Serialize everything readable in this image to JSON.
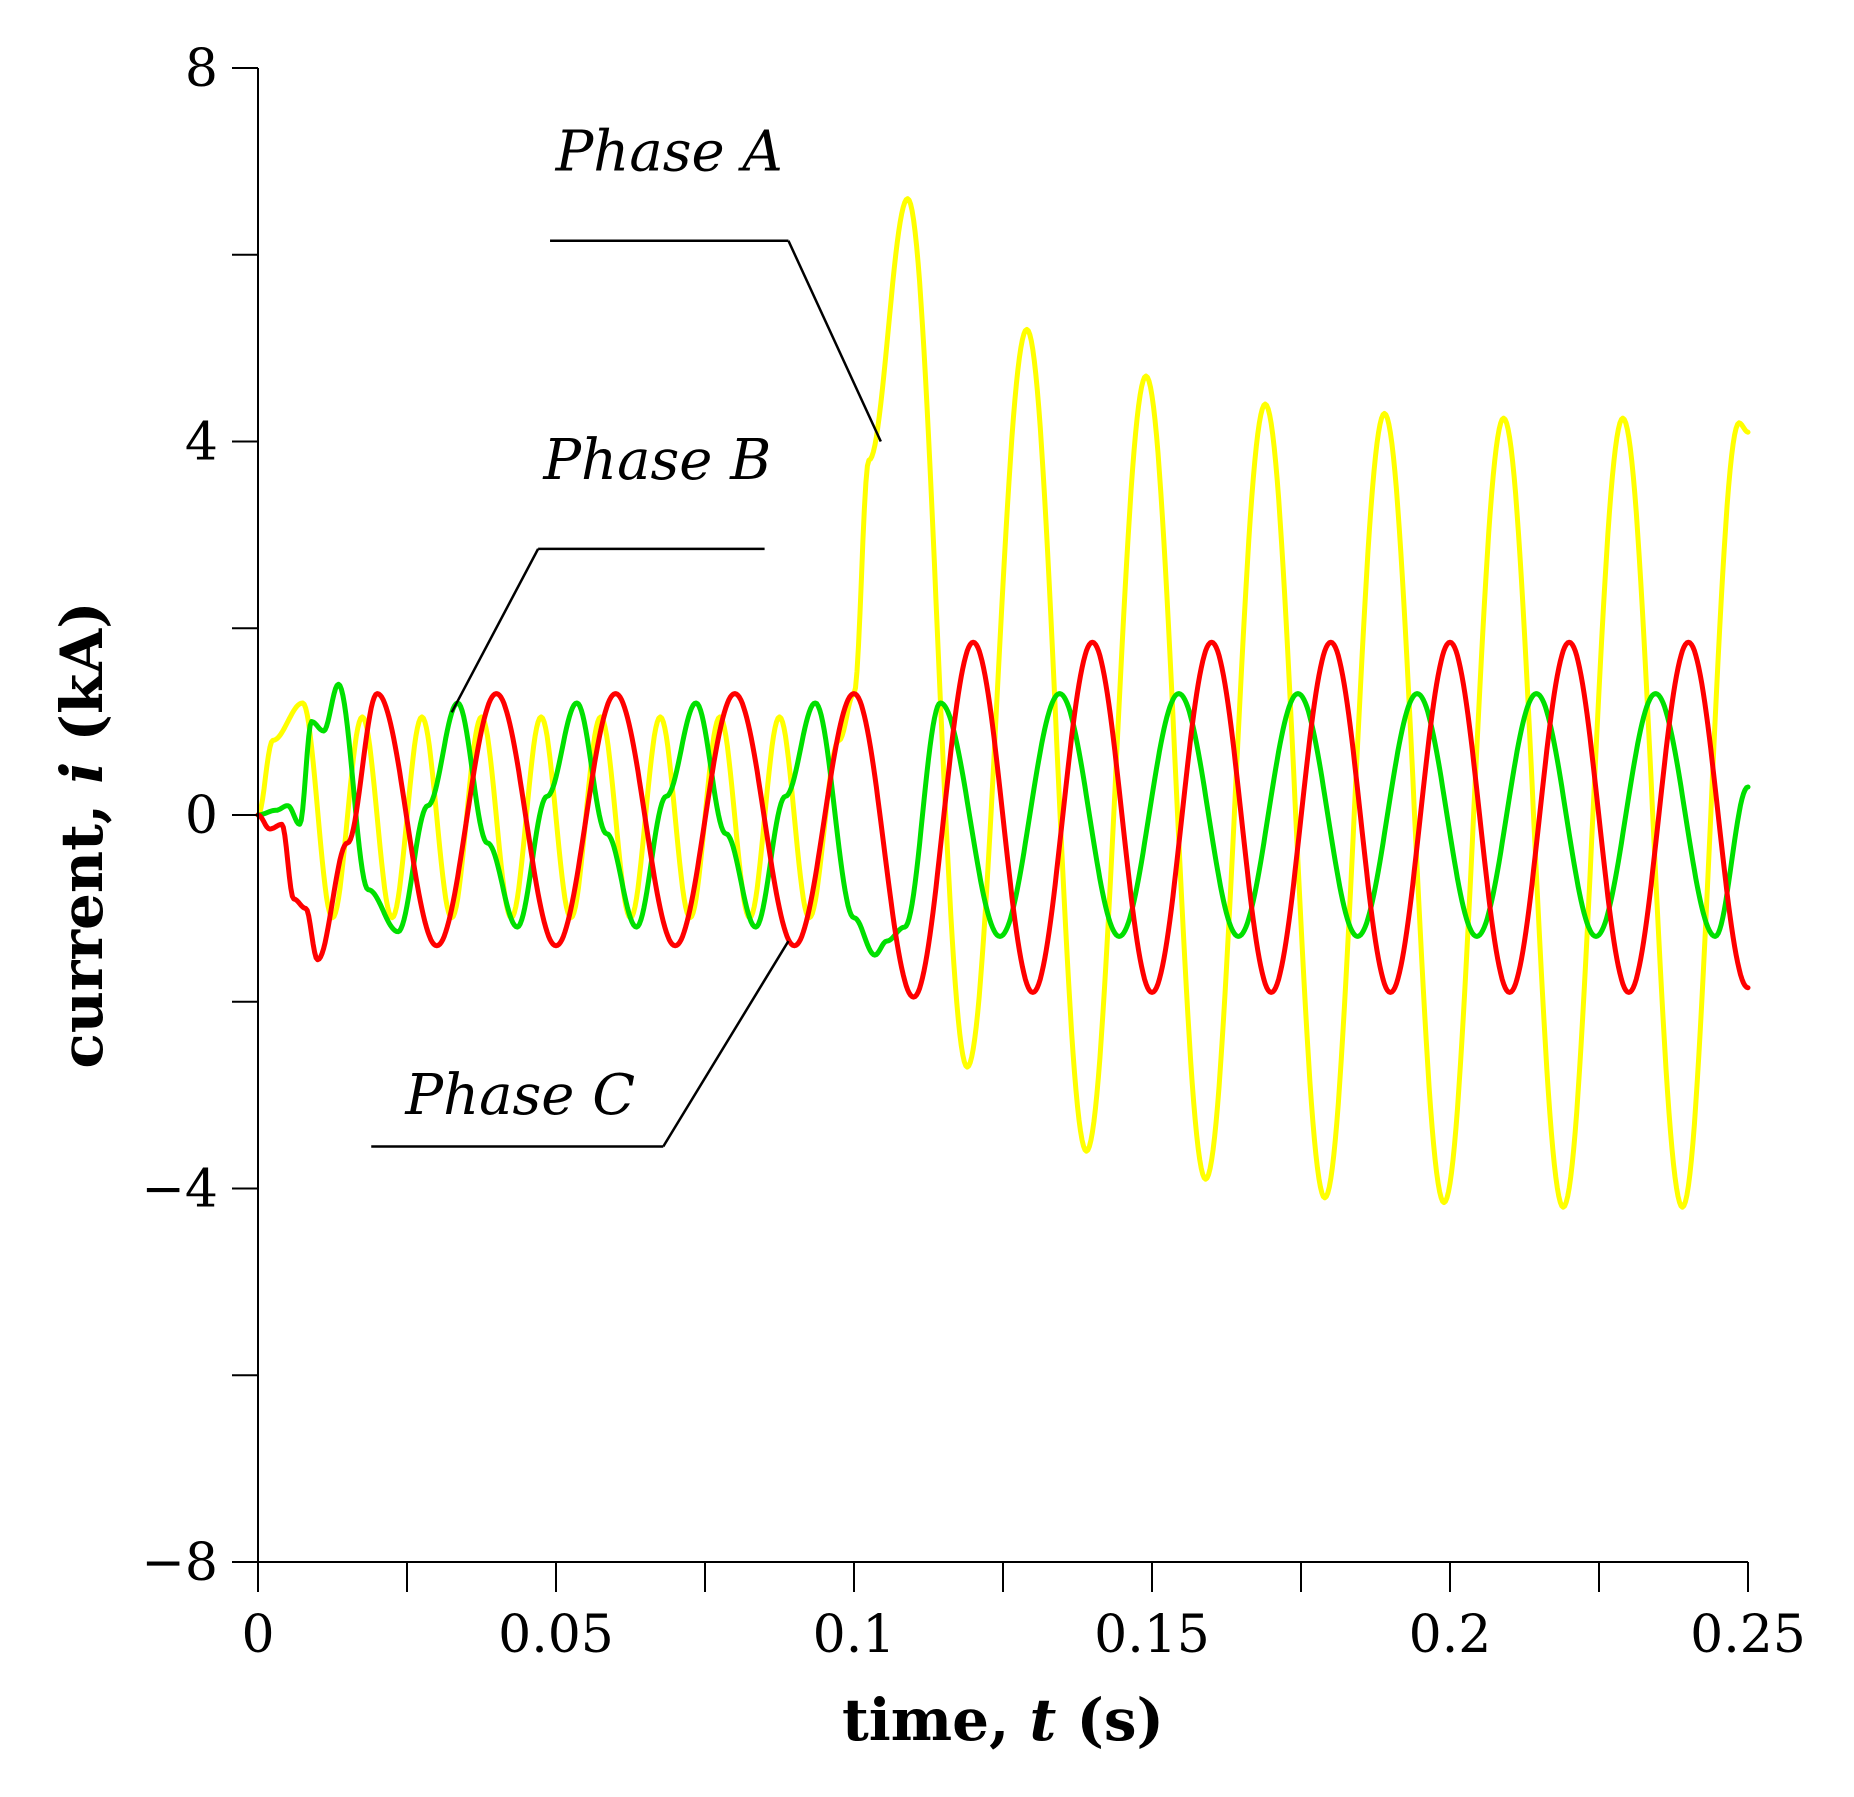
{
  "chart_data": {
    "type": "line",
    "title": "",
    "xlabel_parts": [
      "time, ",
      "t",
      " (s)"
    ],
    "ylabel_parts": [
      "current, ",
      "i",
      " (kA)"
    ],
    "xlim": [
      0,
      0.25
    ],
    "ylim": [
      -8,
      8
    ],
    "x_ticks": [
      0,
      0.05,
      0.1,
      0.15,
      0.2,
      0.25
    ],
    "x_tick_labels": [
      "0",
      "0.05",
      "0.1",
      "0.15",
      "0.2",
      "0.25"
    ],
    "x_minor_ticks": [
      0.025,
      0.075,
      0.125,
      0.175,
      0.225
    ],
    "y_ticks": [
      8,
      4,
      0,
      -4,
      -8
    ],
    "y_tick_labels": [
      "8",
      "4",
      "0",
      "−4",
      "−8"
    ],
    "y_minor_ticks": [
      6,
      2,
      -2,
      -6
    ],
    "grid": false,
    "legend": "none (leader-line annotations)",
    "series": [
      {
        "name": "Phase A",
        "color": "#ffff00",
        "frequency_hz": 50,
        "x": [
          0,
          0.0025,
          0.0075,
          0.0125,
          0.0175,
          0.0225,
          0.0275,
          0.0325,
          0.0375,
          0.0425,
          0.0475,
          0.0525,
          0.0575,
          0.0625,
          0.0675,
          0.0725,
          0.0775,
          0.0825,
          0.0875,
          0.0925,
          0.0975,
          0.1,
          0.1025,
          0.109,
          0.119,
          0.129,
          0.139,
          0.149,
          0.159,
          0.169,
          0.179,
          0.189,
          0.199,
          0.209,
          0.219,
          0.229,
          0.239,
          0.2485,
          0.25
        ],
        "y": [
          0,
          0.8,
          1.2,
          -1.1,
          1.05,
          -1.1,
          1.05,
          -1.1,
          1.05,
          -1.1,
          1.05,
          -1.1,
          1.05,
          -1.1,
          1.05,
          -1.1,
          1.05,
          -1.1,
          1.05,
          -1.1,
          0.8,
          1.3,
          3.8,
          6.6,
          -2.7,
          5.2,
          -3.6,
          4.7,
          -3.9,
          4.4,
          -4.1,
          4.3,
          -4.15,
          4.25,
          -4.2,
          4.25,
          -4.2,
          4.2,
          4.1
        ]
      },
      {
        "name": "Phase B",
        "color": "#00e000",
        "frequency_hz": 50,
        "x": [
          0,
          0.003,
          0.005,
          0.007,
          0.009,
          0.011,
          0.0135,
          0.0185,
          0.0235,
          0.0285,
          0.0335,
          0.0385,
          0.0435,
          0.0485,
          0.0535,
          0.0585,
          0.0635,
          0.0685,
          0.0735,
          0.0785,
          0.0835,
          0.0885,
          0.0935,
          0.1,
          0.1035,
          0.1055,
          0.1085,
          0.1145,
          0.1245,
          0.1345,
          0.1445,
          0.1545,
          0.1645,
          0.1745,
          0.1845,
          0.1945,
          0.2045,
          0.2145,
          0.2245,
          0.2345,
          0.2445,
          0.25
        ],
        "y": [
          0,
          0.05,
          0.1,
          -0.1,
          1.0,
          0.9,
          1.4,
          -0.8,
          -1.25,
          0.1,
          1.2,
          -0.3,
          -1.2,
          0.2,
          1.2,
          -0.2,
          -1.2,
          0.2,
          1.2,
          -0.2,
          -1.2,
          0.2,
          1.2,
          -1.1,
          -1.5,
          -1.35,
          -1.2,
          1.2,
          -1.3,
          1.3,
          -1.3,
          1.3,
          -1.3,
          1.3,
          -1.3,
          1.3,
          -1.3,
          1.3,
          -1.3,
          1.3,
          -1.3,
          0.3
        ]
      },
      {
        "name": "Phase C",
        "color": "#ff0000",
        "frequency_hz": 50,
        "x": [
          0,
          0.002,
          0.004,
          0.006,
          0.008,
          0.01,
          0.015,
          0.02,
          0.03,
          0.04,
          0.05,
          0.06,
          0.07,
          0.08,
          0.09,
          0.1,
          0.11,
          0.12,
          0.13,
          0.14,
          0.15,
          0.16,
          0.17,
          0.18,
          0.19,
          0.2,
          0.21,
          0.22,
          0.23,
          0.24,
          0.25
        ],
        "y": [
          0,
          -0.15,
          -0.1,
          -0.9,
          -1.0,
          -1.55,
          -0.3,
          1.3,
          -1.4,
          1.3,
          -1.4,
          1.3,
          -1.4,
          1.3,
          -1.4,
          1.3,
          -1.95,
          1.85,
          -1.9,
          1.85,
          -1.9,
          1.85,
          -1.9,
          1.85,
          -1.9,
          1.85,
          -1.9,
          1.85,
          -1.9,
          1.85,
          -1.85
        ]
      }
    ],
    "annotations": [
      {
        "text": "Phase A",
        "series": "Phase A",
        "label_x": 0.069,
        "label_y": 6.9,
        "underline_x": [
          0.049,
          0.089
        ],
        "underline_y": 6.15,
        "leader_to": [
          0.1045,
          4.0
        ]
      },
      {
        "text": "Phase B",
        "series": "Phase B",
        "label_x": 0.067,
        "label_y": 3.6,
        "underline_x": [
          0.047,
          0.085
        ],
        "underline_y": 2.85,
        "leader_to": [
          0.0325,
          1.1
        ]
      },
      {
        "text": "Phase C",
        "series": "Phase C",
        "label_x": 0.044,
        "label_y": -3.2,
        "underline_x": [
          0.019,
          0.068
        ],
        "underline_y": -3.55,
        "leader_to": [
          0.089,
          -1.35
        ]
      }
    ]
  }
}
